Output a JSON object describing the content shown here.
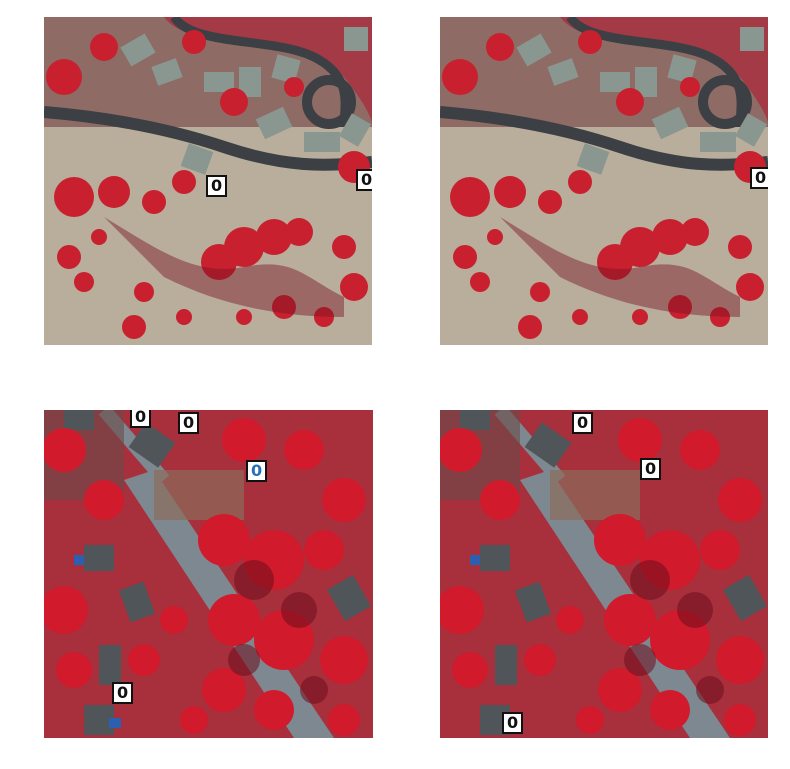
{
  "panels": [
    {
      "id": "top-left",
      "scene": "residential-cul-de-sac-infrared",
      "labels": [
        {
          "text": "0"
        },
        {
          "text": "0"
        }
      ]
    },
    {
      "id": "top-right",
      "scene": "residential-cul-de-sac-infrared",
      "labels": [
        {
          "text": "0"
        }
      ]
    },
    {
      "id": "bottom-left",
      "scene": "wooded-road-infrared",
      "labels": [
        {
          "text": "0"
        },
        {
          "text": "0"
        },
        {
          "text": "0"
        },
        {
          "text": "0"
        }
      ]
    },
    {
      "id": "bottom-right",
      "scene": "wooded-road-infrared",
      "labels": [
        {
          "text": "0"
        },
        {
          "text": "0"
        },
        {
          "text": "0"
        }
      ]
    }
  ],
  "colors": {
    "vegetation": "#c8202f",
    "vegetation_dark": "#7a1424",
    "ground": "#b8ab98",
    "road": "#3c3f44",
    "roof": "#8a9690",
    "label_bg": "#ffffff",
    "label_border": "#111111",
    "label_blue": "#2a6fb5"
  }
}
